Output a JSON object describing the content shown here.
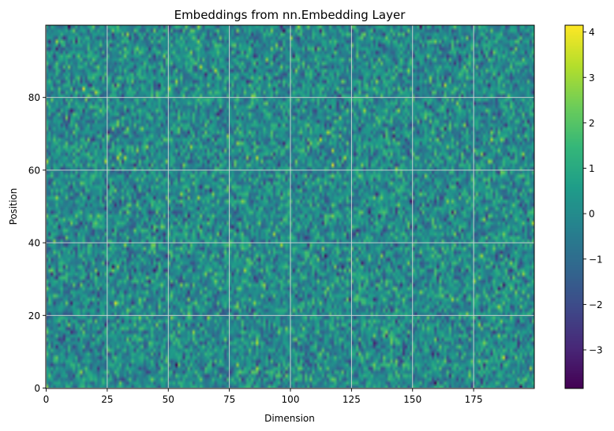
{
  "chart_data": {
    "type": "heatmap",
    "title": "Embeddings from nn.Embedding Layer",
    "xlabel": "Dimension",
    "ylabel": "Position",
    "x_range": [
      0,
      200
    ],
    "y_range": [
      0,
      100
    ],
    "n_cols": 200,
    "n_rows": 100,
    "x_ticks": [
      0,
      25,
      50,
      75,
      100,
      125,
      150,
      175
    ],
    "y_ticks": [
      0,
      20,
      40,
      60,
      80
    ],
    "grid": true,
    "colormap": "viridis",
    "value_distribution": "standard normal random values (nn.Embedding init)",
    "color_range": [
      -3.85,
      4.15
    ],
    "colorbar_ticks": [
      -3,
      -2,
      -1,
      0,
      1,
      2,
      3,
      4
    ],
    "colorbar_tick_labels": [
      "−3",
      "−2",
      "−1",
      "0",
      "1",
      "2",
      "3",
      "4"
    ]
  }
}
